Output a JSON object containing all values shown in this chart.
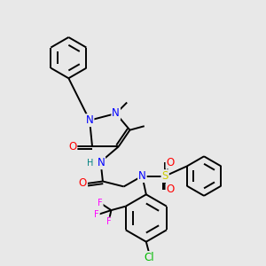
{
  "bg_color": "#e8e8e8",
  "bond_color": "#000000",
  "bond_width": 1.4,
  "atom_colors": {
    "N": "#0000ff",
    "O": "#ff0000",
    "S": "#cccc00",
    "Cl": "#00bb00",
    "F": "#ff00ff",
    "H": "#008080",
    "C": "#000000"
  },
  "font_size_atom": 8.5,
  "font_size_small": 7.0
}
